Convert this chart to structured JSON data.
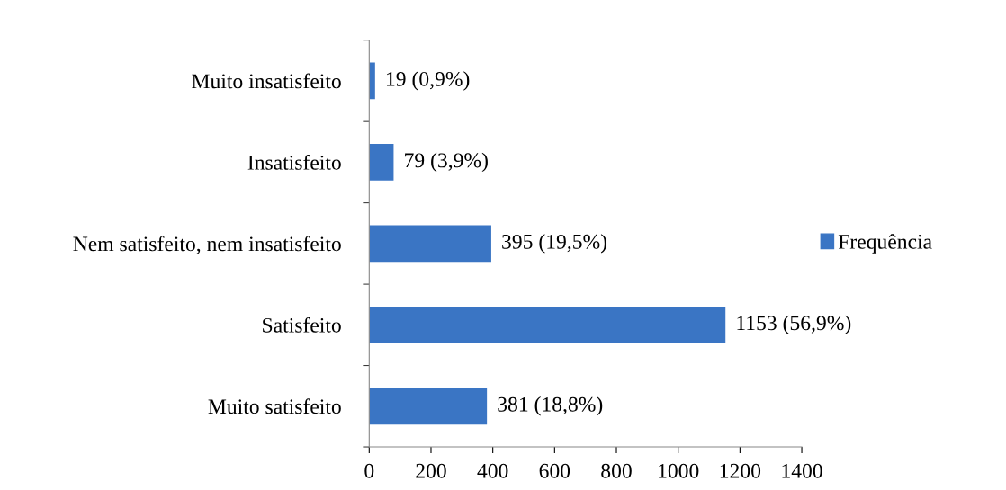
{
  "chart_data": {
    "type": "bar",
    "orientation": "horizontal",
    "categories": [
      "Muito insatisfeito",
      "Insatisfeito",
      "Nem satisfeito, nem insatisfeito",
      "Satisfeito",
      "Muito satisfeito"
    ],
    "series": [
      {
        "name": "Frequência",
        "color": "#3a75c4",
        "values": [
          19,
          79,
          395,
          1153,
          381
        ],
        "value_labels": [
          "19 (0,9%)",
          "79 (3,9%)",
          "395 (19,5%)",
          "1153 (56,9%)",
          "381 (18,8%)"
        ]
      }
    ],
    "xlim": [
      0,
      1400
    ],
    "xticks": [
      0,
      200,
      400,
      600,
      800,
      1000,
      1200,
      1400
    ],
    "grid": false,
    "legend": "right"
  }
}
